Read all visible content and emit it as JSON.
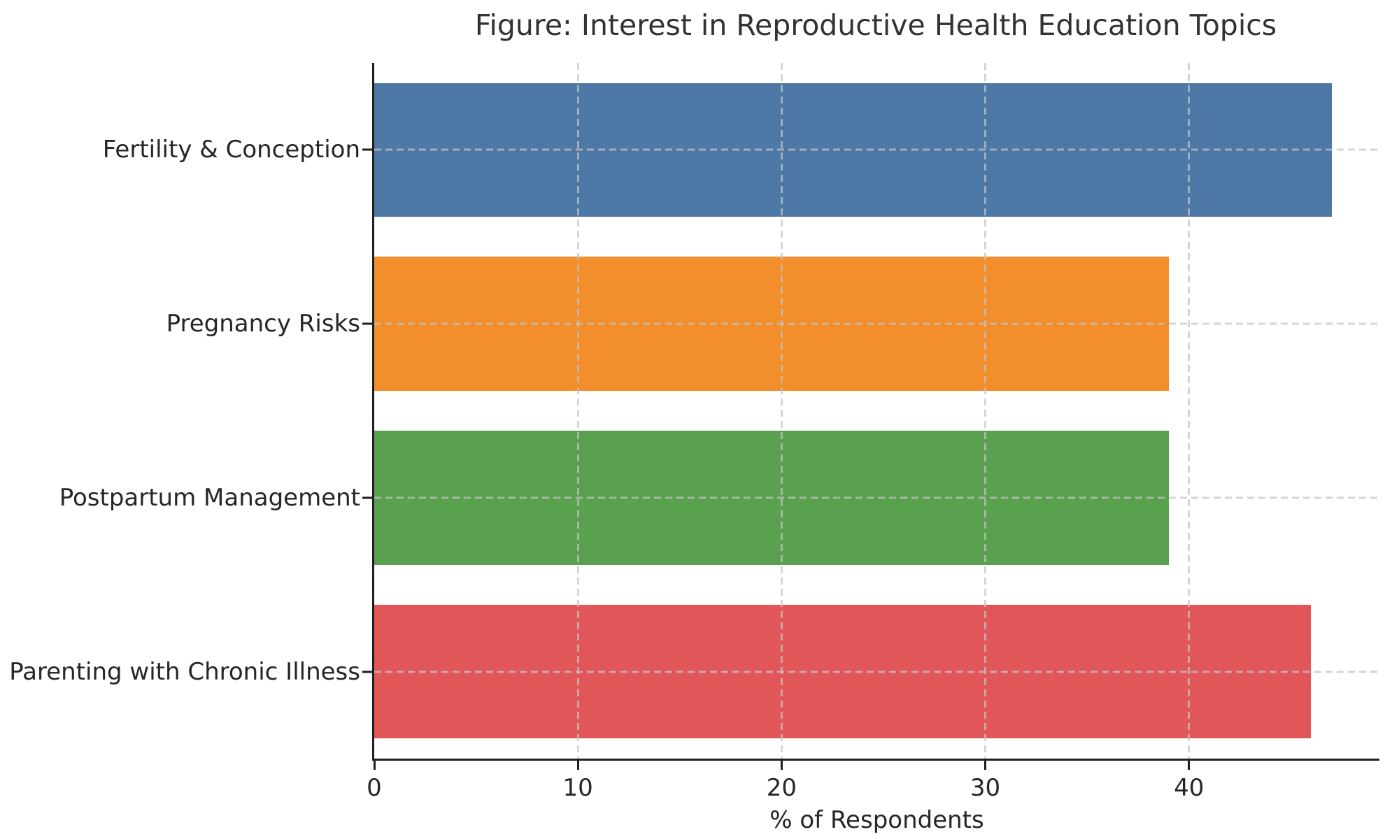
{
  "chart_data": {
    "type": "bar",
    "orientation": "horizontal",
    "title": "Figure: Interest in Reproductive Health Education Topics",
    "xlabel": "% of Respondents",
    "ylabel": "",
    "categories": [
      "Fertility & Conception",
      "Pregnancy Risks",
      "Postpartum Management",
      "Parenting with Chronic Illness"
    ],
    "values": [
      47,
      39,
      39,
      46
    ],
    "bar_colors": [
      "#4e79a7",
      "#f28e2b",
      "#59a14f",
      "#e15759"
    ],
    "x_ticks": [
      0,
      10,
      20,
      30,
      40
    ],
    "xlim": [
      0,
      49.35
    ],
    "grid": "dashed gridlines on both axes, light gray, drawn over bars",
    "legend": "none",
    "spines": [
      "left",
      "bottom"
    ],
    "spine_color": "#1f1f1f",
    "text_color": "#262626",
    "background_color": "#ffffff"
  }
}
